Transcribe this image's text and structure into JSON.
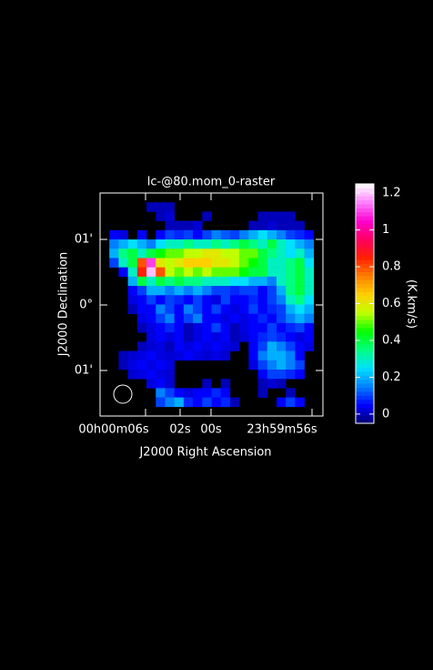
{
  "chart_data": {
    "type": "heatmap",
    "title": "lc-@80.mom_0-raster",
    "xlabel": "J2000 Right Ascension",
    "ylabel": "J2000 Declination",
    "colorbar_label": "(K.km/s)",
    "xtick_labels": [
      "00h00m06s",
      "02s",
      "00s",
      "23h59m56s"
    ],
    "ytick_labels": [
      "01'",
      "0°",
      "01'"
    ],
    "clim": [
      -0.05,
      1.25
    ],
    "cticks": [
      0,
      0.2,
      0.4,
      0.6,
      0.8,
      1,
      1.2
    ],
    "values": [
      [
        null,
        null,
        null,
        null,
        null,
        null,
        null,
        null,
        null,
        null,
        null,
        null,
        null,
        null,
        null,
        null,
        null,
        null,
        null,
        null,
        null,
        null,
        null,
        null
      ],
      [
        null,
        null,
        null,
        null,
        null,
        0,
        0,
        0,
        null,
        null,
        null,
        null,
        null,
        null,
        null,
        null,
        null,
        null,
        null,
        null,
        null,
        null,
        null,
        null
      ],
      [
        null,
        null,
        null,
        null,
        null,
        null,
        0,
        0.02,
        null,
        null,
        null,
        0,
        null,
        null,
        null,
        null,
        null,
        0,
        0,
        0,
        0,
        null,
        null,
        null
      ],
      [
        null,
        null,
        null,
        null,
        null,
        null,
        null,
        0,
        0,
        0,
        0.02,
        null,
        null,
        null,
        null,
        null,
        0,
        0,
        0.02,
        0,
        0,
        0,
        null,
        null
      ],
      [
        null,
        0.05,
        0.03,
        null,
        0.05,
        null,
        0.05,
        0.1,
        0.08,
        0.1,
        0.05,
        0.1,
        0.15,
        0.12,
        0.1,
        0.15,
        0.2,
        0.25,
        0.2,
        0.15,
        0.1,
        0.08,
        0.05,
        null
      ],
      [
        null,
        0.15,
        0.2,
        0.25,
        0.2,
        0.15,
        0.25,
        0.3,
        0.3,
        0.35,
        0.3,
        0.3,
        0.35,
        0.3,
        0.35,
        0.4,
        0.35,
        0.3,
        0.4,
        0.3,
        0.25,
        0.2,
        0.15,
        null
      ],
      [
        null,
        0.2,
        0.35,
        0.4,
        0.3,
        0.4,
        0.45,
        0.5,
        0.5,
        0.55,
        0.55,
        0.6,
        0.6,
        0.55,
        0.55,
        0.5,
        0.5,
        0.4,
        0.35,
        0.3,
        0.25,
        0.3,
        0.2,
        null
      ],
      [
        null,
        0.1,
        0.3,
        0.4,
        0.8,
        1.1,
        0.6,
        0.55,
        0.6,
        0.65,
        0.65,
        0.65,
        0.6,
        0.6,
        0.55,
        0.5,
        0.45,
        0.4,
        0.3,
        0.3,
        0.35,
        0.4,
        0.25,
        null
      ],
      [
        null,
        null,
        0.05,
        0.3,
        0.85,
        1.2,
        0.8,
        0.55,
        0.5,
        0.55,
        0.5,
        0.55,
        0.5,
        0.5,
        0.5,
        0.45,
        0.4,
        0.4,
        0.3,
        0.3,
        0.35,
        0.4,
        0.3,
        null
      ],
      [
        null,
        null,
        null,
        0.2,
        0.4,
        0.3,
        0.4,
        0.35,
        0.4,
        0.35,
        0.35,
        0.3,
        0.3,
        0.3,
        0.25,
        0.25,
        0.2,
        0.2,
        0.15,
        0.3,
        0.35,
        0.4,
        0.3,
        null
      ],
      [
        null,
        null,
        null,
        0.05,
        0.1,
        0.2,
        0.2,
        0.15,
        0.2,
        0.15,
        0.2,
        0.15,
        0.1,
        0.1,
        0.08,
        0.1,
        0.1,
        0.05,
        0.1,
        0.2,
        0.35,
        0.4,
        0.3,
        null
      ],
      [
        null,
        null,
        null,
        0.03,
        0.05,
        0.1,
        0.05,
        0.1,
        0.08,
        0.05,
        0.1,
        0.05,
        0.03,
        0.1,
        0.05,
        0.05,
        0.08,
        0.05,
        0.1,
        0.15,
        0.3,
        0.35,
        0.25,
        null
      ],
      [
        null,
        null,
        null,
        0,
        0.05,
        0.05,
        0.15,
        0.1,
        0.05,
        0.15,
        0.1,
        0.05,
        0.1,
        0.05,
        0.03,
        0.05,
        0.1,
        0.05,
        0.08,
        0.1,
        0.2,
        0.25,
        0.2,
        null
      ],
      [
        null,
        null,
        null,
        null,
        0.03,
        0.05,
        0.1,
        0.15,
        0.05,
        0.1,
        0.15,
        0.05,
        0.05,
        0.03,
        0.05,
        0.03,
        0.05,
        0.08,
        0.05,
        0.1,
        0.15,
        0.2,
        0.15,
        null
      ],
      [
        null,
        null,
        null,
        null,
        0,
        0.03,
        0.05,
        0.08,
        0.05,
        0,
        0.03,
        0.05,
        0.1,
        0.05,
        0,
        0.03,
        0.05,
        0.05,
        0.1,
        0.05,
        0.08,
        0.1,
        0.05,
        null
      ],
      [
        null,
        null,
        null,
        null,
        null,
        0.03,
        0.05,
        0.03,
        0.05,
        0,
        0.03,
        0.05,
        0.03,
        0.05,
        0,
        0.02,
        0.05,
        0.08,
        0.1,
        0.08,
        0.05,
        0.03,
        0.05,
        null
      ],
      [
        null,
        null,
        null,
        null,
        0,
        0.02,
        0.03,
        0,
        0.05,
        0.03,
        0.05,
        0.03,
        0.05,
        0.03,
        0.02,
        null,
        0.05,
        0.1,
        0.2,
        0.15,
        0.1,
        0.05,
        0.03,
        null
      ],
      [
        null,
        null,
        0,
        0.02,
        0.03,
        0.05,
        0.03,
        0.02,
        0.03,
        0.05,
        0.03,
        0.02,
        0.03,
        0.02,
        null,
        null,
        0.05,
        0.15,
        0.2,
        0.2,
        0.15,
        0.05,
        null,
        null
      ],
      [
        null,
        null,
        0,
        0.03,
        0.05,
        0.03,
        0.05,
        0.03,
        null,
        null,
        null,
        null,
        null,
        null,
        null,
        null,
        0.03,
        0.1,
        0.15,
        0.2,
        0.15,
        0.1,
        null,
        null
      ],
      [
        null,
        null,
        null,
        0.02,
        0.03,
        0.05,
        0.03,
        0.02,
        null,
        null,
        null,
        null,
        null,
        null,
        null,
        null,
        null,
        0.05,
        0.1,
        0.1,
        0.08,
        0.05,
        null,
        null
      ],
      [
        null,
        null,
        null,
        null,
        null,
        0.03,
        0.05,
        0.02,
        null,
        null,
        null,
        0,
        null,
        0,
        null,
        null,
        null,
        0,
        0.02,
        0,
        null,
        null,
        null,
        null
      ],
      [
        null,
        null,
        null,
        null,
        null,
        null,
        0.15,
        0.1,
        0.05,
        0.03,
        0.05,
        0.05,
        0.08,
        0.05,
        null,
        null,
        null,
        0,
        null,
        null,
        0,
        null,
        null,
        null
      ],
      [
        null,
        null,
        null,
        null,
        null,
        null,
        0.1,
        0.15,
        0.2,
        0.08,
        0.05,
        0.1,
        0.05,
        0.08,
        0,
        null,
        null,
        null,
        null,
        0.05,
        0.1,
        0.05,
        null,
        null
      ],
      [
        null,
        null,
        null,
        null,
        null,
        null,
        null,
        null,
        null,
        null,
        null,
        null,
        null,
        null,
        null,
        null,
        null,
        null,
        null,
        null,
        null,
        null,
        null,
        null
      ]
    ]
  }
}
